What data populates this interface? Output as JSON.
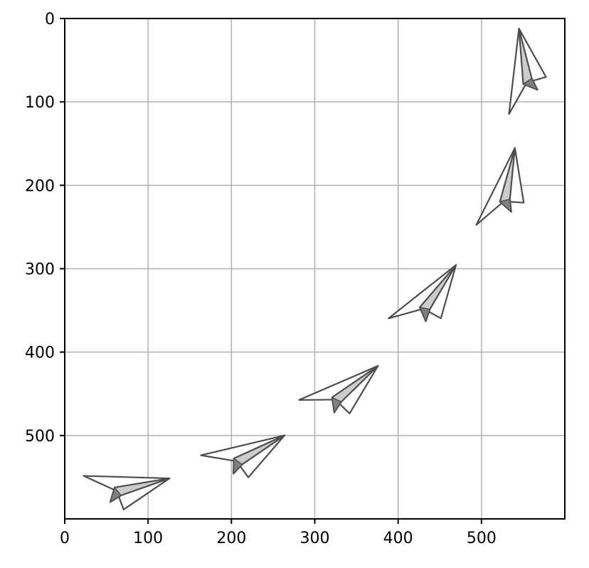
{
  "chart_data": {
    "type": "scatter",
    "title": "",
    "xlabel": "",
    "ylabel": "",
    "xlim": [
      0,
      600
    ],
    "ylim": [
      600,
      0
    ],
    "y_inverted": true,
    "grid": true,
    "x_ticks": [
      0,
      100,
      200,
      300,
      400,
      500
    ],
    "y_ticks": [
      0,
      100,
      200,
      300,
      400,
      500
    ],
    "x_tick_labels": [
      "0",
      "100",
      "200",
      "300",
      "400",
      "500"
    ],
    "y_tick_labels": [
      "0",
      "100",
      "200",
      "300",
      "400",
      "500"
    ],
    "marker": "paper-plane-icon",
    "marker_stroke_color": "#4d4d4d",
    "marker_fill_colors": [
      "#ffffff",
      "#cccccc",
      "#808080"
    ],
    "points": [
      {
        "x": 73,
        "y": 556,
        "heading_deg": -5
      },
      {
        "x": 214,
        "y": 518,
        "heading_deg": -20
      },
      {
        "x": 330,
        "y": 443,
        "heading_deg": -30
      },
      {
        "x": 432,
        "y": 333,
        "heading_deg": -45
      },
      {
        "x": 522,
        "y": 205,
        "heading_deg": -70
      },
      {
        "x": 545,
        "y": 65,
        "heading_deg": -90
      }
    ]
  }
}
